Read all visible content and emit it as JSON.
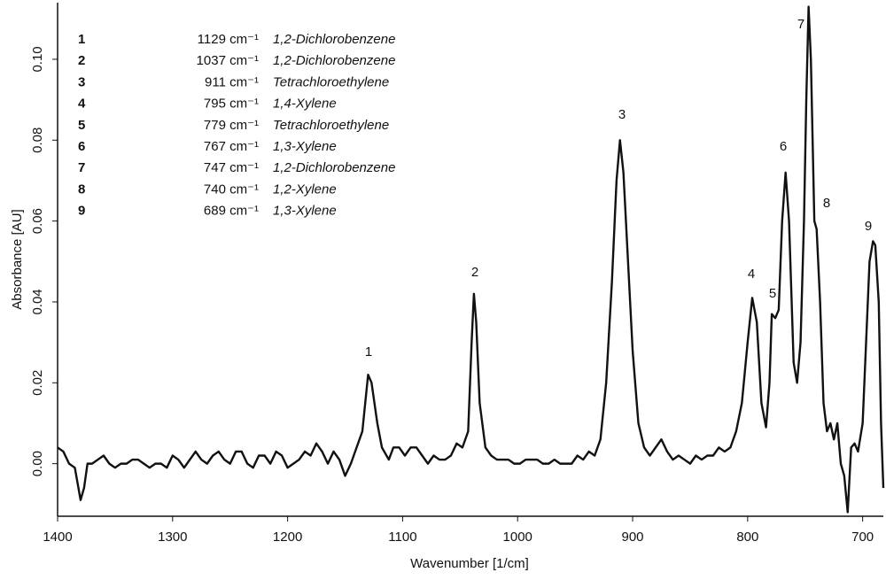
{
  "chart_data": {
    "type": "line",
    "xlabel": "Wavenumber [1/cm]",
    "ylabel": "Absorbance [AU]",
    "xlim": [
      1400,
      682
    ],
    "ylim": [
      -0.013,
      0.114
    ],
    "xticks": [
      1400,
      1300,
      1200,
      1100,
      1000,
      900,
      800,
      700
    ],
    "yticks": [
      {
        "value": 0,
        "label": "0.00"
      },
      {
        "value": 0.02,
        "label": "0.02"
      },
      {
        "value": 0.04,
        "label": "0.04"
      },
      {
        "value": 0.06,
        "label": "0.06"
      },
      {
        "value": 0.08,
        "label": "0.08"
      },
      {
        "value": 0.1,
        "label": "0.10"
      }
    ],
    "color": "#111111",
    "x": [
      1400,
      1395,
      1390,
      1385,
      1380,
      1377,
      1374,
      1370,
      1365,
      1360,
      1355,
      1350,
      1345,
      1340,
      1335,
      1330,
      1325,
      1320,
      1315,
      1310,
      1305,
      1300,
      1295,
      1290,
      1285,
      1280,
      1275,
      1270,
      1265,
      1260,
      1255,
      1250,
      1245,
      1240,
      1235,
      1230,
      1225,
      1220,
      1215,
      1210,
      1205,
      1200,
      1195,
      1190,
      1185,
      1180,
      1175,
      1170,
      1165,
      1160,
      1155,
      1150,
      1145,
      1140,
      1135,
      1130,
      1127,
      1122,
      1118,
      1112,
      1108,
      1103,
      1098,
      1093,
      1088,
      1083,
      1078,
      1073,
      1068,
      1063,
      1058,
      1053,
      1048,
      1043,
      1040,
      1038,
      1036,
      1033,
      1028,
      1023,
      1018,
      1013,
      1008,
      1003,
      998,
      993,
      988,
      983,
      978,
      973,
      968,
      963,
      958,
      953,
      948,
      943,
      938,
      933,
      928,
      923,
      918,
      914,
      911,
      908,
      904,
      900,
      895,
      890,
      885,
      880,
      875,
      870,
      865,
      860,
      855,
      850,
      845,
      840,
      835,
      830,
      825,
      820,
      815,
      810,
      805,
      800,
      796,
      792,
      788,
      784,
      781,
      779,
      776,
      773,
      770,
      767,
      764,
      760,
      757,
      754,
      751,
      749,
      747,
      745,
      742,
      740,
      737,
      734,
      731,
      728,
      725,
      722,
      719,
      716,
      713,
      710,
      707,
      704,
      700,
      697,
      694,
      691,
      689,
      686,
      684,
      682
    ],
    "values": [
      0.004,
      0.003,
      0.0,
      -0.001,
      -0.009,
      -0.006,
      0.0,
      0.0,
      0.001,
      0.002,
      0.0,
      -0.001,
      0.0,
      0.0,
      0.001,
      0.001,
      0.0,
      -0.001,
      0.0,
      0.0,
      -0.001,
      0.002,
      0.001,
      -0.001,
      0.001,
      0.003,
      0.001,
      0.0,
      0.002,
      0.003,
      0.001,
      0.0,
      0.003,
      0.003,
      0.0,
      -0.001,
      0.002,
      0.002,
      0.0,
      0.003,
      0.002,
      -0.001,
      0.0,
      0.001,
      0.003,
      0.002,
      0.005,
      0.003,
      0.0,
      0.003,
      0.001,
      -0.003,
      0.0,
      0.004,
      0.008,
      0.022,
      0.02,
      0.01,
      0.004,
      0.001,
      0.004,
      0.004,
      0.002,
      0.004,
      0.004,
      0.002,
      0.0,
      0.002,
      0.001,
      0.001,
      0.002,
      0.005,
      0.004,
      0.008,
      0.03,
      0.042,
      0.035,
      0.015,
      0.004,
      0.002,
      0.001,
      0.001,
      0.001,
      0.0,
      0.0,
      0.001,
      0.001,
      0.001,
      0.0,
      0.0,
      0.001,
      0.0,
      0.0,
      0.0,
      0.002,
      0.001,
      0.003,
      0.002,
      0.006,
      0.02,
      0.045,
      0.07,
      0.08,
      0.072,
      0.05,
      0.028,
      0.01,
      0.004,
      0.002,
      0.004,
      0.006,
      0.003,
      0.001,
      0.002,
      0.001,
      0.0,
      0.002,
      0.001,
      0.002,
      0.002,
      0.004,
      0.003,
      0.004,
      0.008,
      0.015,
      0.03,
      0.041,
      0.035,
      0.015,
      0.009,
      0.02,
      0.037,
      0.036,
      0.038,
      0.06,
      0.072,
      0.06,
      0.025,
      0.02,
      0.03,
      0.06,
      0.09,
      0.113,
      0.1,
      0.06,
      0.058,
      0.04,
      0.015,
      0.008,
      0.01,
      0.006,
      0.01,
      0.0,
      -0.003,
      -0.012,
      0.004,
      0.005,
      0.003,
      0.01,
      0.03,
      0.05,
      0.055,
      0.054,
      0.04,
      0.01,
      -0.006
    ],
    "peaks": [
      {
        "label": "1",
        "wavenumber": "1129 cm⁻¹",
        "compound": "1,2-Dichlorobenzene"
      },
      {
        "label": "2",
        "wavenumber": "1037 cm⁻¹",
        "compound": "1,2-Dichlorobenzene"
      },
      {
        "label": "3",
        "wavenumber": "911 cm⁻¹",
        "compound": "Tetrachloroethylene"
      },
      {
        "label": "4",
        "wavenumber": "795 cm⁻¹",
        "compound": "1,4-Xylene"
      },
      {
        "label": "5",
        "wavenumber": "779 cm⁻¹",
        "compound": "Tetrachloroethylene"
      },
      {
        "label": "6",
        "wavenumber": "767 cm⁻¹",
        "compound": "1,3-Xylene"
      },
      {
        "label": "7",
        "wavenumber": "747 cm⁻¹",
        "compound": "1,2-Dichlorobenzene"
      },
      {
        "label": "8",
        "wavenumber": "740 cm⁻¹",
        "compound": "1,2-Xylene"
      },
      {
        "label": "9",
        "wavenumber": "689 cm⁻¹",
        "compound": "1,3-Xylene"
      }
    ]
  }
}
